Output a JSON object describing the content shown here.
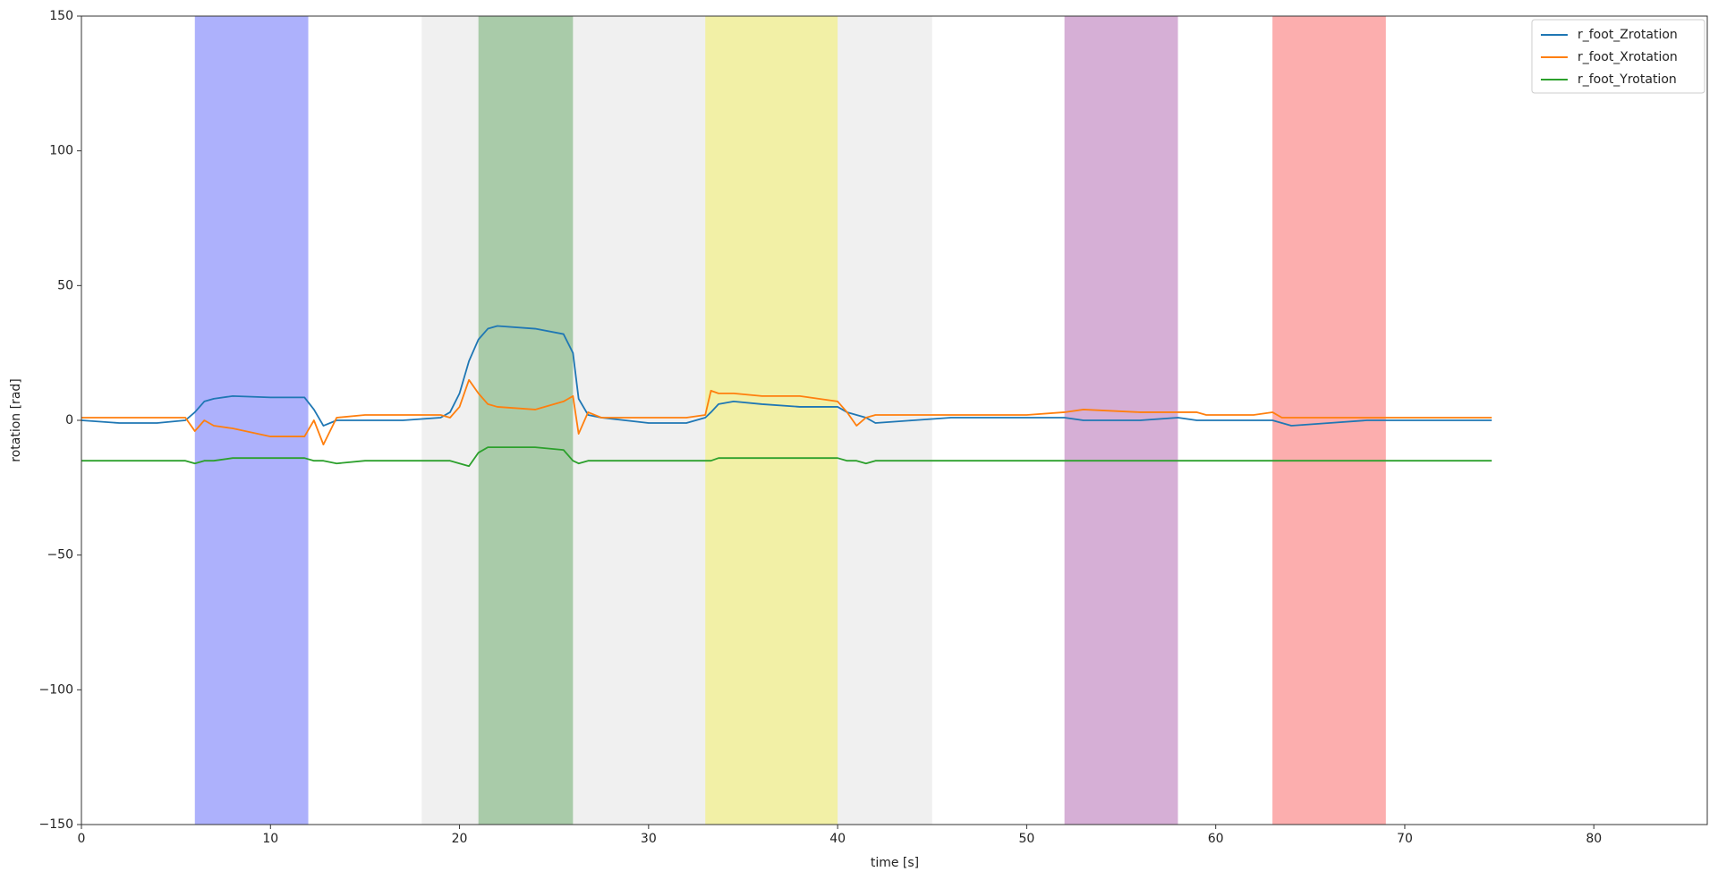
{
  "chart_data": {
    "type": "line",
    "x_label": "time [s]",
    "y_label": "rotation [rad]",
    "xlim": [
      0,
      86
    ],
    "ylim": [
      -150,
      150
    ],
    "xticks": [
      0,
      10,
      20,
      30,
      40,
      50,
      60,
      70,
      80
    ],
    "yticks": [
      {
        "value": -150,
        "label": "−150"
      },
      {
        "value": -100,
        "label": "−100"
      },
      {
        "value": -50,
        "label": "−50"
      },
      0,
      50,
      100,
      150
    ],
    "grid": false,
    "legend_position": "upper right",
    "spans": [
      {
        "x0": 18,
        "x1": 45,
        "color": "#f0f0f0"
      },
      {
        "x0": 6,
        "x1": 12,
        "color": "#adb1fc"
      },
      {
        "x0": 21,
        "x1": 26,
        "color": "#a9cba9"
      },
      {
        "x0": 33,
        "x1": 40,
        "color": "#f2f0a6"
      },
      {
        "x0": 52,
        "x1": 58,
        "color": "#d6afd6"
      },
      {
        "x0": 63,
        "x1": 69,
        "color": "#fcaeae"
      }
    ],
    "x": [
      0,
      2,
      4,
      5.5,
      6,
      6.5,
      7,
      8,
      10,
      11.8,
      12.3,
      12.8,
      13.5,
      15,
      17,
      19,
      19.5,
      20,
      20.5,
      21,
      21.5,
      22,
      24,
      25.5,
      26,
      26.3,
      26.8,
      27.5,
      30,
      32,
      33,
      33.3,
      33.7,
      34.5,
      36,
      38,
      40,
      40.5,
      41,
      41.5,
      42,
      44,
      46,
      50,
      52,
      53,
      56,
      58,
      59,
      59.5,
      62,
      63,
      63.5,
      64,
      66,
      68,
      70,
      72,
      74.6
    ],
    "series": [
      {
        "name": "r_foot_Zrotation",
        "color": "#1f77b4",
        "values": [
          0,
          -1,
          -1,
          0,
          3,
          7,
          8,
          9,
          8.5,
          8.5,
          4,
          -2,
          0,
          0,
          0,
          1,
          3,
          10,
          22,
          30,
          34,
          35,
          34,
          32,
          25,
          8,
          2,
          1,
          -1,
          -1,
          1,
          3,
          6,
          7,
          6,
          5,
          5,
          3,
          2,
          1,
          -1,
          0,
          1,
          1,
          1,
          0,
          0,
          1,
          0,
          0,
          0,
          0,
          -1,
          -2,
          -1,
          0,
          0,
          0,
          0
        ]
      },
      {
        "name": "r_foot_Xrotation",
        "color": "#ff7f0e",
        "values": [
          1,
          1,
          1,
          1,
          -4,
          0,
          -2,
          -3,
          -6,
          -6,
          0,
          -9,
          1,
          2,
          2,
          2,
          1,
          5,
          15,
          10,
          6,
          5,
          4,
          7,
          9,
          -5,
          3,
          1,
          1,
          1,
          2,
          11,
          10,
          10,
          9,
          9,
          7,
          3,
          -2,
          1,
          2,
          2,
          2,
          2,
          3,
          4,
          3,
          3,
          3,
          2,
          2,
          3,
          1,
          1,
          1,
          1,
          1,
          1,
          1
        ]
      },
      {
        "name": "r_foot_Yrotation",
        "color": "#2ca02c",
        "values": [
          -15,
          -15,
          -15,
          -15,
          -16,
          -15,
          -15,
          -14,
          -14,
          -14,
          -15,
          -15,
          -16,
          -15,
          -15,
          -15,
          -15,
          -16,
          -17,
          -12,
          -10,
          -10,
          -10,
          -11,
          -15,
          -16,
          -15,
          -15,
          -15,
          -15,
          -15,
          -15,
          -14,
          -14,
          -14,
          -14,
          -14,
          -15,
          -15,
          -16,
          -15,
          -15,
          -15,
          -15,
          -15,
          -15,
          -15,
          -15,
          -15,
          -15,
          -15,
          -15,
          -15,
          -15,
          -15,
          -15,
          -15,
          -15,
          -15
        ]
      }
    ]
  }
}
